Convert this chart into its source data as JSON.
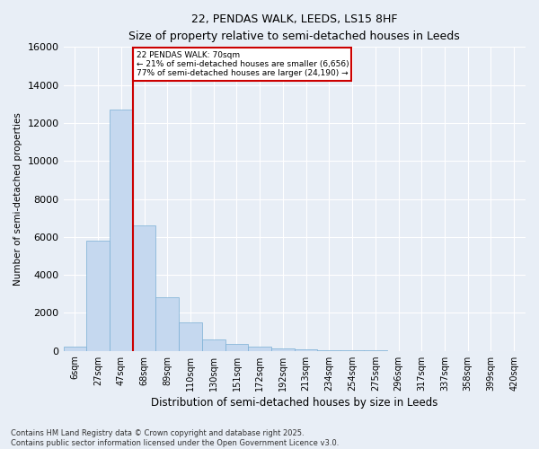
{
  "title1": "22, PENDAS WALK, LEEDS, LS15 8HF",
  "title2": "Size of property relative to semi-detached houses in Leeds",
  "xlabel": "Distribution of semi-detached houses by size in Leeds",
  "ylabel": "Number of semi-detached properties",
  "property_label": "22 PENDAS WALK: 70sqm",
  "pct_smaller": 21,
  "count_smaller": 6656,
  "pct_larger": 77,
  "count_larger": 24190,
  "bin_labels": [
    "6sqm",
    "27sqm",
    "47sqm",
    "68sqm",
    "89sqm",
    "110sqm",
    "130sqm",
    "151sqm",
    "172sqm",
    "192sqm",
    "213sqm",
    "234sqm",
    "254sqm",
    "275sqm",
    "296sqm",
    "317sqm",
    "337sqm",
    "358sqm",
    "399sqm",
    "420sqm"
  ],
  "bar_heights": [
    200,
    5800,
    12700,
    6600,
    2800,
    1500,
    600,
    350,
    200,
    150,
    100,
    50,
    30,
    10,
    5,
    2,
    1,
    1,
    1,
    0
  ],
  "bar_color": "#c5d8ef",
  "bar_edgecolor": "#7aafd4",
  "vline_index": 2.5,
  "vline_color": "#cc0000",
  "annotation_box_edgecolor": "#cc0000",
  "bg_color": "#e8eef6",
  "plot_bg_color": "#e8eef6",
  "ylim": [
    0,
    16000
  ],
  "yticks": [
    0,
    2000,
    4000,
    6000,
    8000,
    10000,
    12000,
    14000,
    16000
  ],
  "grid_color": "#ffffff",
  "footnote1": "Contains HM Land Registry data © Crown copyright and database right 2025.",
  "footnote2": "Contains public sector information licensed under the Open Government Licence v3.0."
}
